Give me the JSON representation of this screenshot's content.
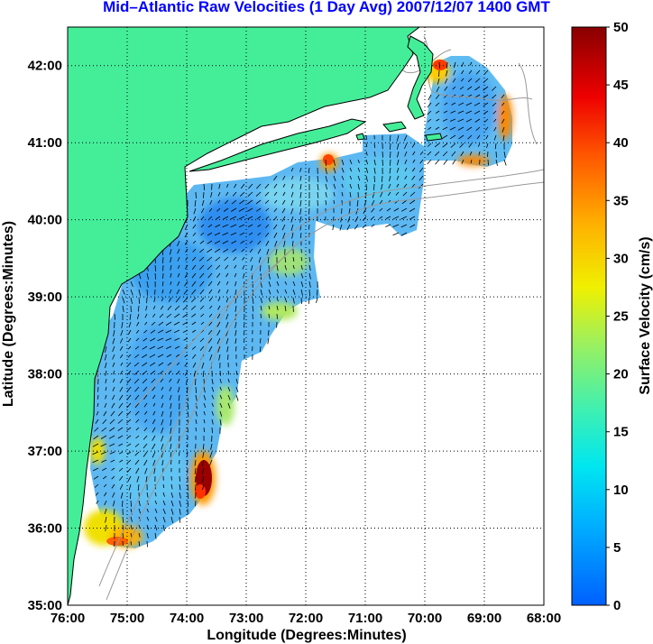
{
  "title": "Mid–Atlantic Raw Velocities (1 Day Avg) 2007/12/07 1400 GMT",
  "xlabel": "Longitude (Degrees:Minutes)",
  "ylabel": "Latitude (Degrees:Minutes)",
  "x_ticks": [
    "76:00",
    "75:00",
    "74:00",
    "73:00",
    "72:00",
    "71:00",
    "70:00",
    "69:00",
    "68:00"
  ],
  "y_ticks": [
    "42:00",
    "41:00",
    "40:00",
    "39:00",
    "38:00",
    "37:00",
    "36:00",
    "35:00"
  ],
  "colorbar": {
    "label": "Surface Velocity (cm/s)",
    "ticks": [
      "50",
      "45",
      "40",
      "35",
      "30",
      "25",
      "20",
      "15",
      "10",
      "5",
      "0"
    ],
    "range": [
      0,
      50
    ],
    "colors": [
      "#0060ff",
      "#00c8ff",
      "#33f0c8",
      "#7ef07a",
      "#f0f000",
      "#ff9900",
      "#ff2200",
      "#8b0000"
    ]
  },
  "colors": {
    "land": "#44ee99",
    "ocean_no_data": "#ffffff",
    "title_color": "#0000ff",
    "bathymetry": "#999999"
  },
  "chart_data": {
    "type": "heatmap",
    "title": "Mid–Atlantic Raw Velocities (1 Day Avg) 2007/12/07 1400 GMT",
    "xlabel": "Longitude (Degrees:Minutes)",
    "ylabel": "Latitude (Degrees:Minutes)",
    "xlim": [
      -76,
      -68
    ],
    "ylim": [
      35,
      42.5
    ],
    "grid": true,
    "colorbar_label": "Surface Velocity (cm/s)",
    "colorbar_range": [
      0,
      50
    ],
    "hotspots": [
      {
        "lon": -73.6,
        "lat": 36.7,
        "speed": 48
      },
      {
        "lon": -74.9,
        "lat": 35.85,
        "speed": 30
      },
      {
        "lon": -69.8,
        "lat": 42.0,
        "speed": 38
      },
      {
        "lon": -71.6,
        "lat": 40.8,
        "speed": 33
      },
      {
        "lon": -68.5,
        "lat": 41.2,
        "speed": 35
      },
      {
        "lon": -69.3,
        "lat": 40.7,
        "speed": 32
      },
      {
        "lon": -75.35,
        "lat": 36.9,
        "speed": 30
      }
    ]
  }
}
